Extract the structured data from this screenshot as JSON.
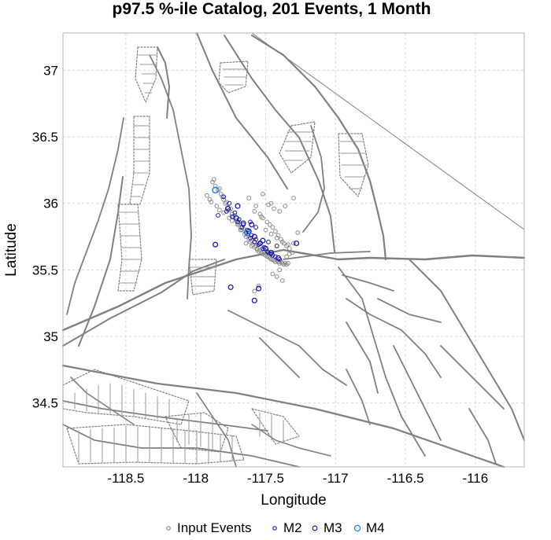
{
  "chart_data": {
    "type": "scatter",
    "title": "p97.5 %-ile Catalog, 201 Events, 1 Month",
    "xlabel": "Longitude",
    "ylabel": "Latitude",
    "xlim": [
      -118.95,
      -115.65
    ],
    "ylim": [
      34.02,
      37.28
    ],
    "xticks": [
      -118.5,
      -118,
      -117.5,
      -117,
      -116.5,
      -116
    ],
    "xtick_labels": [
      "-118.5",
      "-118",
      "-117.5",
      "-117",
      "-116.5",
      "-116"
    ],
    "yticks": [
      34.5,
      35,
      35.5,
      36,
      36.5,
      37
    ],
    "ytick_labels": [
      "34.5",
      "35",
      "35.5",
      "36",
      "36.5",
      "37"
    ],
    "grid": true,
    "legend_position": "bottom",
    "legend": [
      {
        "label": "Input Events",
        "color": "#8c8c8c",
        "size": "small"
      },
      {
        "label": "M2",
        "color": "#1a1aaa",
        "size": "small"
      },
      {
        "label": "M3",
        "color": "#1a1aaa",
        "size": "medium"
      },
      {
        "label": "M4",
        "color": "#1f7fd8",
        "size": "large"
      }
    ],
    "colors": {
      "input": "#8c8c8c",
      "m2": "#1a1aaa",
      "m3": "#1a1aaa",
      "m4": "#1f7fd8",
      "faults": "#808080",
      "grid": "#d8d8d8"
    },
    "series": [
      {
        "name": "Input Events",
        "marker": "circle-small",
        "color": "#8c8c8c",
        "x": [
          -117.88,
          -117.86,
          -117.84,
          -117.82,
          -117.8,
          -117.79,
          -117.77,
          -117.76,
          -117.74,
          -117.73,
          -117.71,
          -117.7,
          -117.68,
          -117.67,
          -117.65,
          -117.64,
          -117.62,
          -117.61,
          -117.59,
          -117.58,
          -117.56,
          -117.55,
          -117.53,
          -117.52,
          -117.5,
          -117.49,
          -117.47,
          -117.46,
          -117.44,
          -117.43,
          -117.41,
          -117.4,
          -117.38,
          -117.37,
          -117.35,
          -117.87,
          -117.83,
          -117.81,
          -117.78,
          -117.75,
          -117.72,
          -117.69,
          -117.66,
          -117.63,
          -117.6,
          -117.57,
          -117.54,
          -117.51,
          -117.48,
          -117.45,
          -117.42,
          -117.39,
          -117.36,
          -117.34,
          -117.58,
          -117.54,
          -117.52,
          -117.49,
          -117.47,
          -117.45,
          -117.43,
          -117.41,
          -117.39,
          -117.37,
          -117.35,
          -117.33,
          -117.31,
          -117.44,
          -117.4,
          -117.36,
          -117.3,
          -117.52,
          -117.48,
          -117.46,
          -117.62,
          -117.57,
          -117.53,
          -117.5,
          -117.46,
          -117.42,
          -117.38,
          -117.34,
          -117.64,
          -117.6,
          -117.56,
          -117.92,
          -117.9,
          -117.89,
          -117.85,
          -117.83,
          -117.8,
          -117.76,
          -117.74,
          -117.7,
          -117.68,
          -117.35,
          -117.3,
          -117.4,
          -117.45,
          -117.55,
          -117.58,
          -117.42,
          -117.33,
          -117.27,
          -117.38
        ],
        "y": [
          36.16,
          36.13,
          36.1,
          36.07,
          36.03,
          36.0,
          35.97,
          35.95,
          35.92,
          35.9,
          35.87,
          35.85,
          35.82,
          35.8,
          35.77,
          35.75,
          35.73,
          35.71,
          35.69,
          35.67,
          35.66,
          35.64,
          35.63,
          35.62,
          35.61,
          35.6,
          35.59,
          35.58,
          35.57,
          35.56,
          35.56,
          35.55,
          35.55,
          35.54,
          35.54,
          36.18,
          36.11,
          36.05,
          36.01,
          35.96,
          35.91,
          35.86,
          35.81,
          35.76,
          35.72,
          35.68,
          35.65,
          35.63,
          35.6,
          35.58,
          35.57,
          35.56,
          35.55,
          35.55,
          35.94,
          35.92,
          35.89,
          35.86,
          35.84,
          35.82,
          35.79,
          35.76,
          35.73,
          35.7,
          35.68,
          35.66,
          35.63,
          35.96,
          35.94,
          35.98,
          36.04,
          36.07,
          35.99,
          36.0,
          36.04,
          35.98,
          35.9,
          35.8,
          35.77,
          35.74,
          35.71,
          35.69,
          35.7,
          35.68,
          35.65,
          36.06,
          36.03,
          36.01,
          35.98,
          35.95,
          35.93,
          35.89,
          35.87,
          35.84,
          35.8,
          35.6,
          35.7,
          35.5,
          35.47,
          35.38,
          35.34,
          35.45,
          35.62,
          35.78,
          35.42
        ]
      },
      {
        "name": "M2",
        "marker": "circle-small",
        "color": "#1a1aaa",
        "x": [
          -117.8,
          -117.76,
          -117.72,
          -117.69,
          -117.66,
          -117.63,
          -117.6,
          -117.57,
          -117.54,
          -117.51,
          -117.49,
          -117.46,
          -117.43,
          -117.4,
          -117.78,
          -117.74,
          -117.7,
          -117.67,
          -117.64,
          -117.61,
          -117.58,
          -117.55,
          -117.52,
          -117.48,
          -117.45,
          -117.84,
          -117.61,
          -117.57,
          -117.48,
          -117.42
        ],
        "y": [
          36.05,
          36.0,
          35.93,
          35.88,
          35.84,
          35.8,
          35.76,
          35.73,
          35.7,
          35.67,
          35.64,
          35.62,
          35.6,
          35.58,
          35.94,
          35.9,
          35.86,
          35.82,
          35.78,
          35.74,
          35.71,
          35.69,
          35.66,
          35.63,
          35.61,
          35.91,
          35.86,
          35.82,
          35.71,
          35.68
        ]
      },
      {
        "name": "M3",
        "marker": "circle-medium",
        "color": "#1a1aaa",
        "x": [
          -117.77,
          -117.71,
          -117.66,
          -117.62,
          -117.58,
          -117.54,
          -117.5,
          -117.46,
          -117.41,
          -117.28,
          -117.7,
          -117.6,
          -117.52,
          -117.75,
          -117.58,
          -117.55,
          -117.86
        ],
        "y": [
          35.96,
          35.89,
          35.85,
          35.79,
          35.75,
          35.7,
          35.66,
          35.63,
          35.59,
          35.7,
          35.98,
          35.84,
          35.72,
          35.37,
          35.27,
          35.36,
          35.69
        ]
      },
      {
        "name": "M4",
        "marker": "circle-large",
        "color": "#1f7fd8",
        "x": [
          -117.86,
          -117.63
        ],
        "y": [
          36.1,
          35.78
        ]
      }
    ]
  }
}
